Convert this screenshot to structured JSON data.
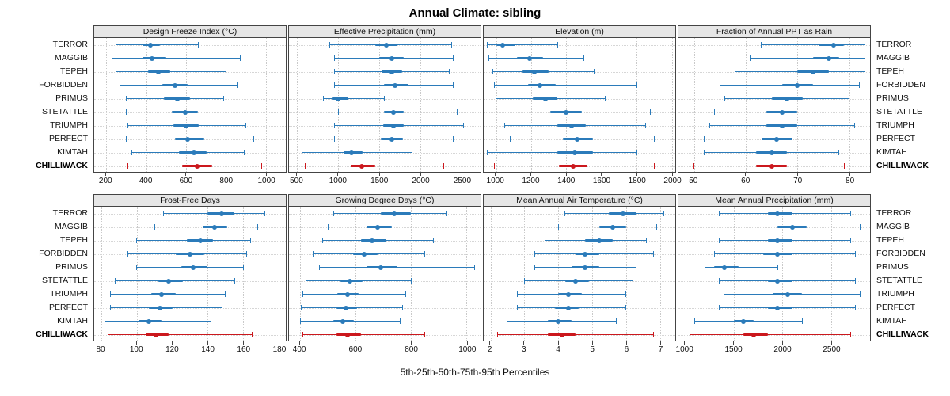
{
  "title": "Annual Climate: sibling",
  "footer": "5th-25th-50th-75th-95th Percentiles",
  "stations": [
    "TERROR",
    "MAGGIB",
    "TEPEH",
    "FORBIDDEN",
    "PRIMUS",
    "STETATTLE",
    "TRIUMPH",
    "PERFECT",
    "KIMTAH",
    "CHILLIWACK"
  ],
  "highlight_station": "CHILLIWACK",
  "colors": {
    "series": "#2b7bba",
    "highlight": "#cb181d",
    "header_bg": "#e6e6e6",
    "panel_border": "#444444",
    "grid": "#c9c9c9",
    "text": "#111111"
  },
  "chart_data": {
    "type": "interval",
    "orientation": "horizontal",
    "percentiles": [
      5,
      25,
      50,
      75,
      95
    ],
    "legend_note": "whisker = 5th-95th, thick bar = 25th-75th, dot = 50th percentile",
    "panels": [
      {
        "title": "Design Freeze Index (°C)",
        "range": [
          140,
          1100
        ],
        "ticks": [
          200,
          400,
          600,
          800,
          1000
        ],
        "values": [
          [
            250,
            380,
            420,
            470,
            660
          ],
          [
            230,
            380,
            430,
            500,
            870
          ],
          [
            250,
            410,
            460,
            520,
            800
          ],
          [
            270,
            480,
            545,
            610,
            860
          ],
          [
            300,
            490,
            555,
            620,
            790
          ],
          [
            300,
            530,
            595,
            660,
            950
          ],
          [
            310,
            535,
            600,
            665,
            900
          ],
          [
            300,
            545,
            610,
            690,
            940
          ],
          [
            330,
            565,
            640,
            705,
            890
          ],
          [
            310,
            580,
            655,
            730,
            980
          ]
        ]
      },
      {
        "title": "Effective Precipitation (mm)",
        "range": [
          400,
          2730
        ],
        "ticks": [
          500,
          1000,
          1500,
          2000,
          2500
        ],
        "values": [
          [
            900,
            1450,
            1580,
            1720,
            2380
          ],
          [
            950,
            1500,
            1650,
            1800,
            2400
          ],
          [
            950,
            1530,
            1650,
            1780,
            2350
          ],
          [
            950,
            1560,
            1690,
            1850,
            2400
          ],
          [
            820,
            930,
            1000,
            1120,
            1560
          ],
          [
            1000,
            1560,
            1670,
            1800,
            2450
          ],
          [
            950,
            1550,
            1670,
            1800,
            2520
          ],
          [
            950,
            1520,
            1650,
            1790,
            2400
          ],
          [
            560,
            1060,
            1160,
            1300,
            1900
          ],
          [
            600,
            1150,
            1290,
            1450,
            2280
          ]
        ]
      },
      {
        "title": "Elevation (m)",
        "range": [
          930,
          2020
        ],
        "ticks": [
          1000,
          1200,
          1400,
          1600,
          1800,
          2000
        ],
        "values": [
          [
            950,
            1000,
            1040,
            1110,
            1350
          ],
          [
            960,
            1120,
            1190,
            1270,
            1500
          ],
          [
            980,
            1150,
            1220,
            1300,
            1560
          ],
          [
            990,
            1180,
            1250,
            1340,
            1800
          ],
          [
            1000,
            1210,
            1280,
            1350,
            1620
          ],
          [
            1000,
            1310,
            1400,
            1490,
            1880
          ],
          [
            1050,
            1350,
            1430,
            1510,
            1850
          ],
          [
            1080,
            1380,
            1460,
            1550,
            1900
          ],
          [
            950,
            1350,
            1450,
            1550,
            1800
          ],
          [
            990,
            1360,
            1440,
            1520,
            1900
          ]
        ]
      },
      {
        "title": "Fraction of Annual PPT as Rain",
        "range": [
          47,
          84
        ],
        "ticks": [
          50,
          60,
          70,
          80
        ],
        "values": [
          [
            63,
            74,
            77,
            79,
            83
          ],
          [
            61,
            73,
            76,
            78,
            83
          ],
          [
            58,
            70,
            73,
            76,
            83
          ],
          [
            55,
            67,
            70,
            73,
            82
          ],
          [
            56,
            65,
            68,
            71,
            80
          ],
          [
            54,
            64,
            67,
            70,
            80
          ],
          [
            53,
            64,
            67,
            70,
            81
          ],
          [
            52,
            63,
            66,
            69,
            80
          ],
          [
            52,
            62,
            65,
            68,
            78
          ],
          [
            50,
            62,
            65,
            68,
            79
          ]
        ]
      },
      {
        "title": "Frost-Free Days",
        "range": [
          76,
          184
        ],
        "ticks": [
          80,
          100,
          120,
          140,
          160,
          180
        ],
        "values": [
          [
            115,
            140,
            148,
            155,
            172
          ],
          [
            110,
            137,
            144,
            151,
            168
          ],
          [
            100,
            128,
            136,
            143,
            164
          ],
          [
            95,
            122,
            130,
            138,
            162
          ],
          [
            100,
            125,
            132,
            140,
            160
          ],
          [
            88,
            112,
            118,
            126,
            155
          ],
          [
            85,
            108,
            114,
            122,
            150
          ],
          [
            85,
            107,
            113,
            120,
            148
          ],
          [
            82,
            101,
            107,
            114,
            142
          ],
          [
            84,
            105,
            111,
            118,
            165
          ]
        ]
      },
      {
        "title": "Growing Degree Days (°C)",
        "range": [
          360,
          1050
        ],
        "ticks": [
          400,
          600,
          800,
          1000
        ],
        "values": [
          [
            520,
            690,
            740,
            800,
            930
          ],
          [
            500,
            640,
            680,
            730,
            900
          ],
          [
            480,
            620,
            660,
            710,
            880
          ],
          [
            450,
            590,
            630,
            680,
            850
          ],
          [
            470,
            640,
            690,
            750,
            1030
          ],
          [
            420,
            545,
            580,
            625,
            800
          ],
          [
            410,
            535,
            570,
            610,
            780
          ],
          [
            405,
            530,
            565,
            605,
            770
          ],
          [
            400,
            520,
            555,
            595,
            760
          ],
          [
            410,
            530,
            570,
            620,
            850
          ]
        ]
      },
      {
        "title": "Mean Annual Air Temperature (°C)",
        "range": [
          1.8,
          7.45
        ],
        "ticks": [
          2,
          3,
          4,
          5,
          6,
          7
        ],
        "values": [
          [
            4.2,
            5.5,
            5.9,
            6.3,
            7.1
          ],
          [
            4.0,
            5.2,
            5.6,
            6.0,
            6.9
          ],
          [
            3.6,
            4.8,
            5.2,
            5.6,
            6.6
          ],
          [
            3.3,
            4.5,
            4.8,
            5.2,
            6.8
          ],
          [
            3.3,
            4.4,
            4.8,
            5.2,
            6.3
          ],
          [
            3.0,
            4.2,
            4.5,
            4.9,
            6.2
          ],
          [
            2.8,
            4.0,
            4.3,
            4.7,
            6.0
          ],
          [
            2.8,
            3.9,
            4.3,
            4.6,
            6.0
          ],
          [
            2.5,
            3.7,
            4.0,
            4.4,
            5.7
          ],
          [
            2.2,
            3.7,
            4.1,
            4.5,
            6.8
          ]
        ]
      },
      {
        "title": "Mean Annual Precipitation (mm)",
        "range": [
          930,
          2900
        ],
        "ticks": [
          1000,
          1500,
          2000,
          2500
        ],
        "values": [
          [
            1350,
            1850,
            1950,
            2100,
            2700
          ],
          [
            1400,
            1950,
            2100,
            2250,
            2800
          ],
          [
            1350,
            1850,
            1950,
            2100,
            2700
          ],
          [
            1300,
            1800,
            1950,
            2100,
            2750
          ],
          [
            1200,
            1300,
            1400,
            1550,
            1950
          ],
          [
            1350,
            1850,
            1950,
            2100,
            2750
          ],
          [
            1400,
            1900,
            2050,
            2200,
            2800
          ],
          [
            1350,
            1850,
            1950,
            2100,
            2750
          ],
          [
            1100,
            1500,
            1600,
            1700,
            2200
          ],
          [
            1050,
            1600,
            1700,
            1850,
            2700
          ]
        ]
      }
    ]
  }
}
